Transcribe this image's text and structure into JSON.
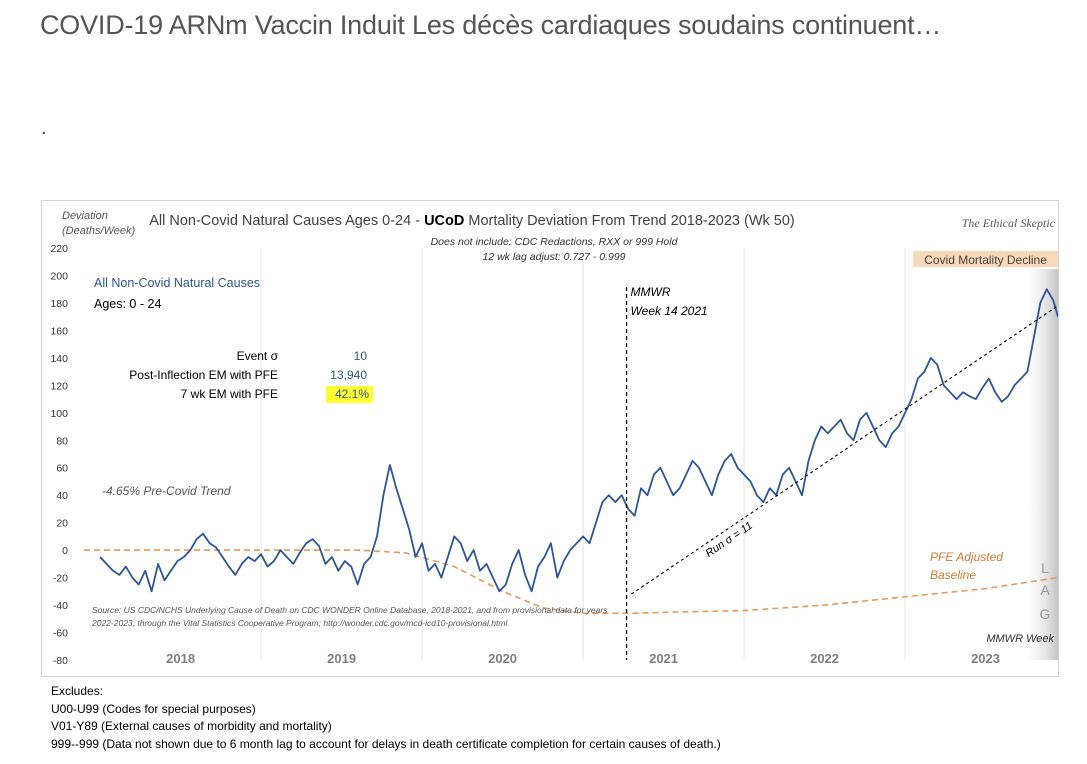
{
  "page": {
    "headline": "COVID-19 ARNm Vaccin Induit Les décès cardiaques soudains continuent…",
    "dot": "."
  },
  "chart_data": {
    "type": "line",
    "title_prefix": "All Non-Covid Natural Causes Ages 0-24 - ",
    "title_bold": "UCoD",
    "title_suffix": " Mortality Deviation From Trend  2018-2023 (Wk 50)",
    "brand": "The Ethical Skeptic",
    "ylabel_line1": "Deviation",
    "ylabel_line2": "(Deaths/Week)",
    "note_line1": "Does not include: CDC Redactions,  RXX or 999 Hold",
    "note_line2": "12 wk lag adjust: 0.727 - 0.999",
    "ylim": [
      -80,
      220
    ],
    "y_ticks": [
      220,
      200,
      180,
      160,
      140,
      120,
      100,
      80,
      60,
      40,
      20,
      0,
      -20,
      -40,
      -60,
      -80
    ],
    "x_range": [
      2017.9,
      2023.95
    ],
    "year_labels": [
      {
        "label": "2018",
        "x": 2018.5
      },
      {
        "label": "2019",
        "x": 2019.5
      },
      {
        "label": "2020",
        "x": 2020.5
      },
      {
        "label": "2021",
        "x": 2021.5
      },
      {
        "label": "2022",
        "x": 2022.5
      },
      {
        "label": "2023",
        "x": 2023.5
      }
    ],
    "year_dividers": [
      2019.0,
      2020.0,
      2021.0,
      2022.0,
      2023.0
    ],
    "legend_series": "All Non-Covid Natural Causes",
    "legend_ages": "Ages: 0 - 24",
    "stats": [
      {
        "label": "Event σ",
        "value": "10"
      },
      {
        "label": "Post-Inflection EM with PFE",
        "value": "13,940"
      },
      {
        "label": "7 wk EM with PFE",
        "value": "42.1%"
      }
    ],
    "precovid_trend": "-4.65% Pre-Covid Trend",
    "mmwr_line1": "MMWR",
    "mmwr_line2": "Week 14 2021",
    "mmwr_x": 2021.27,
    "covid_decline_label": "Covid Mortality Decline",
    "covid_decline_range": [
      2023.0,
      2023.95
    ],
    "run_label": "Run σ = 11",
    "run_line": {
      "x": [
        2021.3,
        2023.95
      ],
      "y": [
        -32,
        178
      ]
    },
    "pfe_label_line1": "PFE Adjusted",
    "pfe_label_line2": "Baseline",
    "lag_letters": [
      "L",
      "A",
      "G"
    ],
    "mmwr_week": "MMWR Week",
    "source_line1": "Source: US CDC/NCHS Underlying Cause of Death on CDC WONDER Online Database, 2018-2021, and from provisional data for years",
    "source_line2": "2022-2023, through the Vital Statistics Cooperative Program; http://wonder.cdc.gov/mcd-icd10-provisional.html",
    "baseline": {
      "x": [
        2017.9,
        2019.0,
        2019.6,
        2019.9,
        2020.2,
        2020.5,
        2020.75,
        2021.0,
        2021.3,
        2021.6,
        2022.0,
        2022.5,
        2023.0,
        2023.5,
        2023.95
      ],
      "y": [
        0,
        0,
        0,
        -2,
        -12,
        -30,
        -42,
        -46,
        -46,
        -45,
        -44,
        -40,
        -34,
        -28,
        -20
      ]
    },
    "series": [
      {
        "name": "All Non-Covid Natural Causes",
        "color": "#2e5597",
        "x": [
          2018.0,
          2018.04,
          2018.08,
          2018.12,
          2018.16,
          2018.2,
          2018.24,
          2018.28,
          2018.32,
          2018.36,
          2018.4,
          2018.44,
          2018.48,
          2018.52,
          2018.56,
          2018.6,
          2018.64,
          2018.68,
          2018.72,
          2018.76,
          2018.8,
          2018.84,
          2018.88,
          2018.92,
          2018.96,
          2019.0,
          2019.04,
          2019.08,
          2019.12,
          2019.16,
          2019.2,
          2019.24,
          2019.28,
          2019.32,
          2019.36,
          2019.4,
          2019.44,
          2019.48,
          2019.52,
          2019.56,
          2019.6,
          2019.64,
          2019.68,
          2019.72,
          2019.76,
          2019.8,
          2019.84,
          2019.88,
          2019.92,
          2019.96,
          2020.0,
          2020.04,
          2020.08,
          2020.12,
          2020.16,
          2020.2,
          2020.24,
          2020.28,
          2020.32,
          2020.36,
          2020.4,
          2020.44,
          2020.48,
          2020.52,
          2020.56,
          2020.6,
          2020.64,
          2020.68,
          2020.72,
          2020.76,
          2020.8,
          2020.84,
          2020.88,
          2020.92,
          2020.96,
          2021.0,
          2021.04,
          2021.08,
          2021.12,
          2021.16,
          2021.2,
          2021.24,
          2021.28,
          2021.32,
          2021.36,
          2021.4,
          2021.44,
          2021.48,
          2021.52,
          2021.56,
          2021.6,
          2021.64,
          2021.68,
          2021.72,
          2021.76,
          2021.8,
          2021.84,
          2021.88,
          2021.92,
          2021.96,
          2022.0,
          2022.04,
          2022.08,
          2022.12,
          2022.16,
          2022.2,
          2022.24,
          2022.28,
          2022.32,
          2022.36,
          2022.4,
          2022.44,
          2022.48,
          2022.52,
          2022.56,
          2022.6,
          2022.64,
          2022.68,
          2022.72,
          2022.76,
          2022.8,
          2022.84,
          2022.88,
          2022.92,
          2022.96,
          2023.0,
          2023.04,
          2023.08,
          2023.12,
          2023.16,
          2023.2,
          2023.24,
          2023.28,
          2023.32,
          2023.36,
          2023.4,
          2023.44,
          2023.48,
          2023.52,
          2023.56,
          2023.6,
          2023.64,
          2023.68,
          2023.72,
          2023.76,
          2023.8,
          2023.84,
          2023.88,
          2023.92,
          2023.95
        ],
        "y": [
          -5,
          -10,
          -15,
          -18,
          -12,
          -20,
          -25,
          -15,
          -30,
          -10,
          -22,
          -15,
          -8,
          -5,
          0,
          8,
          12,
          5,
          2,
          -5,
          -12,
          -18,
          -10,
          -5,
          -8,
          -3,
          -12,
          -8,
          0,
          -5,
          -10,
          -2,
          5,
          8,
          3,
          -10,
          -5,
          -15,
          -8,
          -12,
          -25,
          -10,
          -5,
          10,
          40,
          62,
          45,
          30,
          15,
          -5,
          5,
          -15,
          -10,
          -20,
          -5,
          10,
          5,
          -8,
          0,
          -15,
          -10,
          -20,
          -30,
          -25,
          -10,
          0,
          -18,
          -30,
          -12,
          -5,
          5,
          -20,
          -8,
          0,
          5,
          10,
          5,
          20,
          35,
          40,
          35,
          40,
          30,
          25,
          45,
          40,
          55,
          60,
          50,
          40,
          45,
          55,
          65,
          60,
          50,
          40,
          55,
          65,
          70,
          60,
          55,
          50,
          40,
          35,
          45,
          40,
          55,
          60,
          50,
          40,
          65,
          80,
          90,
          85,
          90,
          95,
          85,
          80,
          95,
          100,
          90,
          80,
          75,
          85,
          90,
          100,
          110,
          125,
          130,
          140,
          135,
          120,
          115,
          110,
          115,
          112,
          110,
          118,
          125,
          115,
          108,
          112,
          120,
          125,
          130,
          155,
          180,
          190,
          182,
          170
        ]
      }
    ]
  },
  "excludes": {
    "heading": "Excludes:",
    "lines": [
      "U00-U99 (Codes for special purposes)",
      "V01-Y89 (External causes of morbidity and mortality)",
      "999--999 (Data not shown due to 6 month lag to account for delays in death certificate completion for certain causes of death.)"
    ]
  },
  "colors": {
    "series": "#2e5597",
    "baseline": "#e59a5a",
    "highlight": "#ffff33",
    "covid_band": "#f9d7b9",
    "lag_band": "#cfcfcf"
  }
}
